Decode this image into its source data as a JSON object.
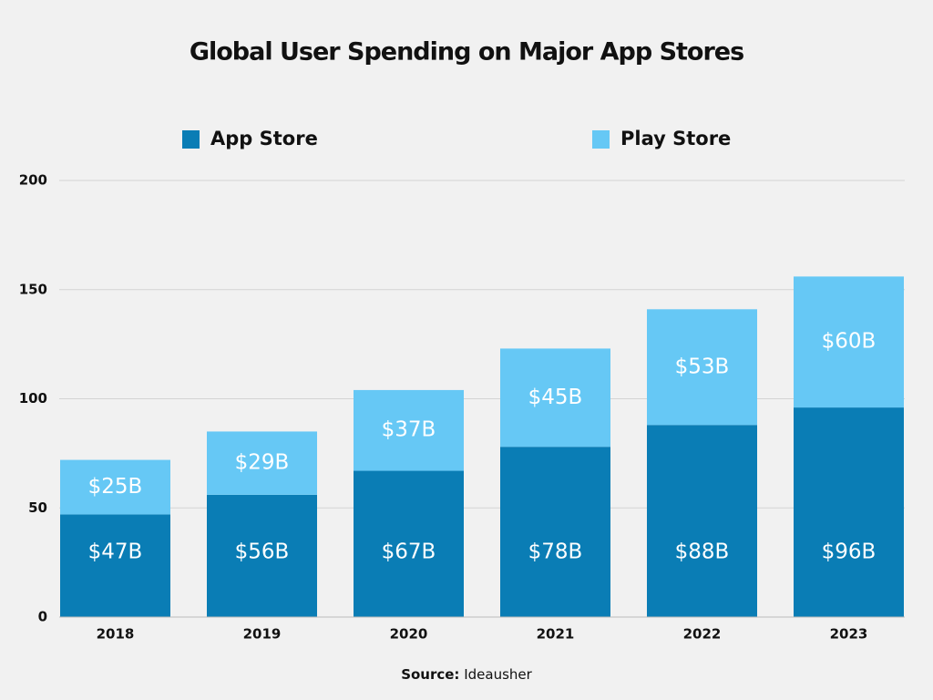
{
  "chart_data": {
    "type": "stacked_bar",
    "title": "Global User Spending on Major App Stores",
    "categories": [
      "2018",
      "2019",
      "2020",
      "2021",
      "2022",
      "2023"
    ],
    "series": [
      {
        "name": "App Store",
        "color": "#0a7db5",
        "values": [
          47,
          56,
          67,
          78,
          88,
          96
        ],
        "value_labels": [
          "$47B",
          "$56B",
          "$67B",
          "$78B",
          "$88B",
          "$96B"
        ]
      },
      {
        "name": "Play Store",
        "color": "#66c8f5",
        "values": [
          25,
          29,
          37,
          45,
          53,
          60
        ],
        "value_labels": [
          "$25B",
          "$29B",
          "$37B",
          "$45B",
          "$53B",
          "$60B"
        ]
      }
    ],
    "ylim": [
      0,
      200
    ],
    "yticks": [
      0,
      50,
      100,
      150,
      200
    ],
    "grid": true,
    "source_label": "Source:",
    "source": "Ideausher"
  }
}
